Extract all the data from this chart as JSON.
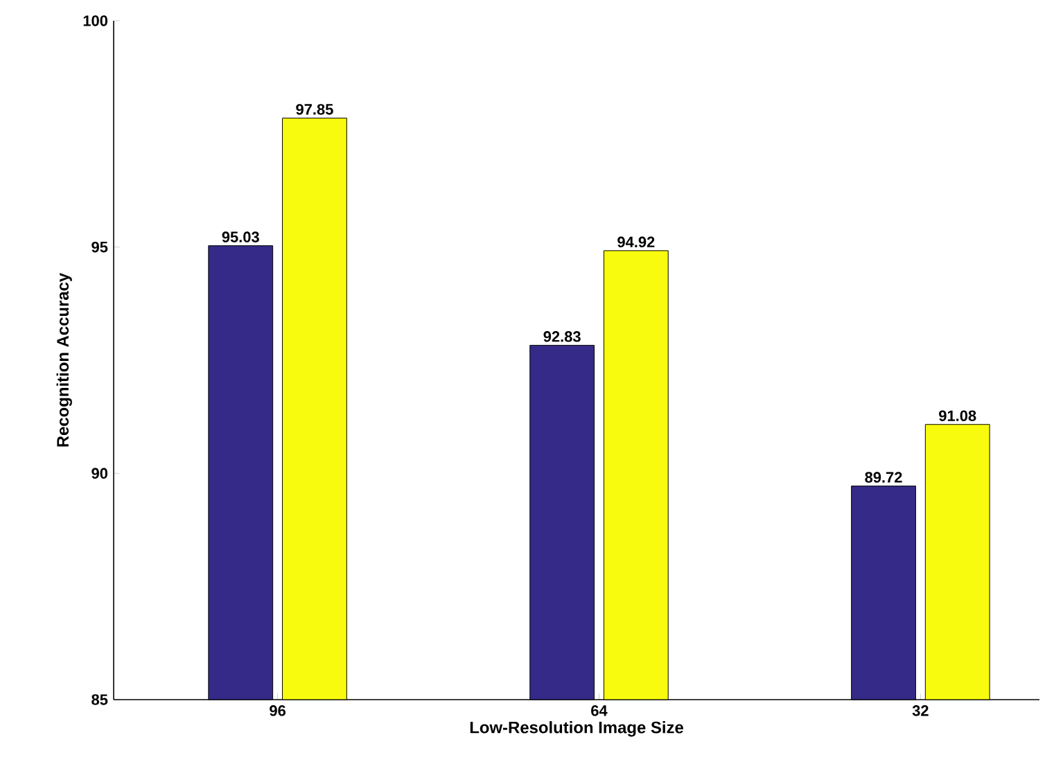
{
  "chart_data": {
    "type": "bar",
    "xlabel": "Low-Resolution Image Size",
    "ylabel": "Recognition Accuracy",
    "categories": [
      "96",
      "64",
      "32"
    ],
    "series": [
      {
        "color": "#352a87",
        "values": [
          95.03,
          92.83,
          89.72
        ]
      },
      {
        "color": "#f9fb0e",
        "values": [
          97.85,
          94.92,
          91.08
        ]
      }
    ],
    "ylim": [
      85,
      100
    ],
    "yticks": [
      85,
      90,
      95,
      100
    ],
    "data_labels": true
  }
}
